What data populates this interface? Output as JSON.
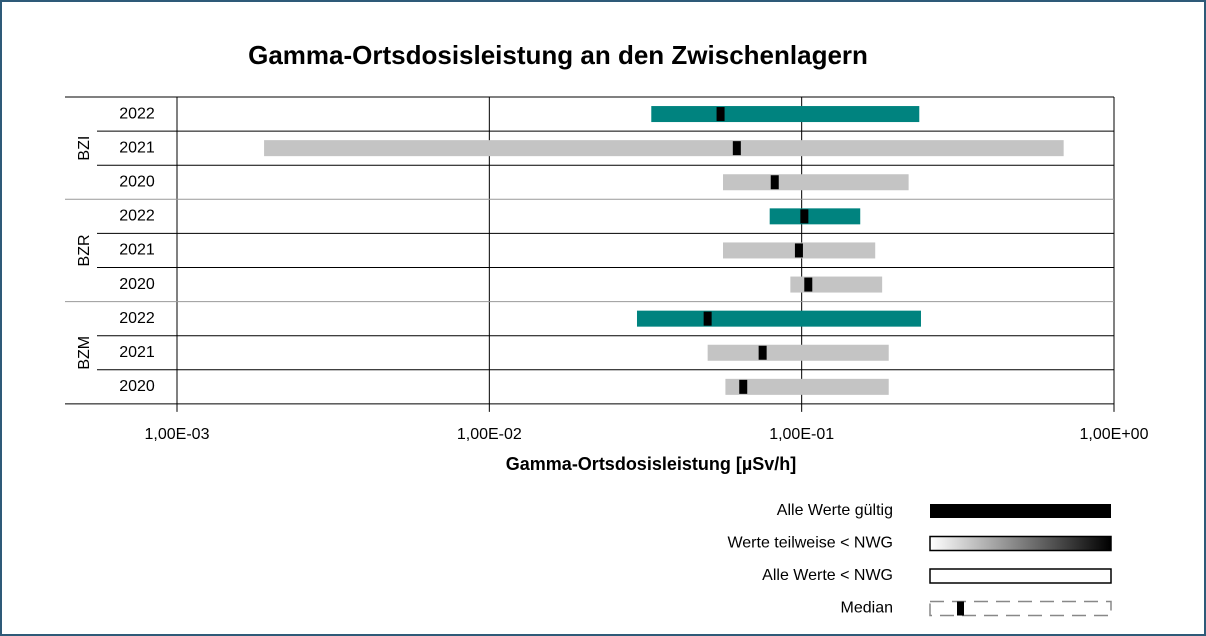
{
  "chart_data": {
    "type": "range_bar",
    "title": "Gamma-Ortsdosisleistung  an den Zwischenlagern",
    "x_label": "Gamma-Ortsdosisleistung [µSv/h]",
    "x_scale": "log",
    "xlim": [
      0.001,
      1
    ],
    "xticks": [
      {
        "value": 0.001,
        "label": "1,00E-03"
      },
      {
        "value": 0.01,
        "label": "1,00E-02"
      },
      {
        "value": 0.1,
        "label": "1,00E-01"
      },
      {
        "value": 1,
        "label": "1,00E+00"
      }
    ],
    "grid": true,
    "groups": [
      {
        "name": "BZI",
        "rows": [
          {
            "label": "2022",
            "low": 0.033,
            "high": 0.238,
            "median": 0.055,
            "color": "#00837f"
          },
          {
            "label": "2021",
            "low": 0.0019,
            "high": 0.69,
            "median": 0.062,
            "color": "#c4c4c4"
          },
          {
            "label": "2020",
            "low": 0.056,
            "high": 0.22,
            "median": 0.082,
            "color": "#c4c4c4"
          }
        ]
      },
      {
        "name": "BZR",
        "rows": [
          {
            "label": "2022",
            "low": 0.079,
            "high": 0.154,
            "median": 0.102,
            "color": "#00837f"
          },
          {
            "label": "2021",
            "low": 0.056,
            "high": 0.172,
            "median": 0.098,
            "color": "#c4c4c4"
          },
          {
            "label": "2020",
            "low": 0.092,
            "high": 0.181,
            "median": 0.105,
            "color": "#c4c4c4"
          }
        ]
      },
      {
        "name": "BZM",
        "rows": [
          {
            "label": "2022",
            "low": 0.0297,
            "high": 0.241,
            "median": 0.05,
            "color": "#00837f"
          },
          {
            "label": "2021",
            "low": 0.05,
            "high": 0.19,
            "median": 0.075,
            "color": "#c4c4c4"
          },
          {
            "label": "2020",
            "low": 0.057,
            "high": 0.19,
            "median": 0.065,
            "color": "#c4c4c4"
          }
        ]
      }
    ],
    "legend": [
      {
        "label": "Alle Werte gültig",
        "style": "solid"
      },
      {
        "label": "Werte teilweise < NWG",
        "style": "gradient"
      },
      {
        "label": "Alle Werte < NWG",
        "style": "outline"
      },
      {
        "label": "Median",
        "style": "median"
      }
    ]
  }
}
